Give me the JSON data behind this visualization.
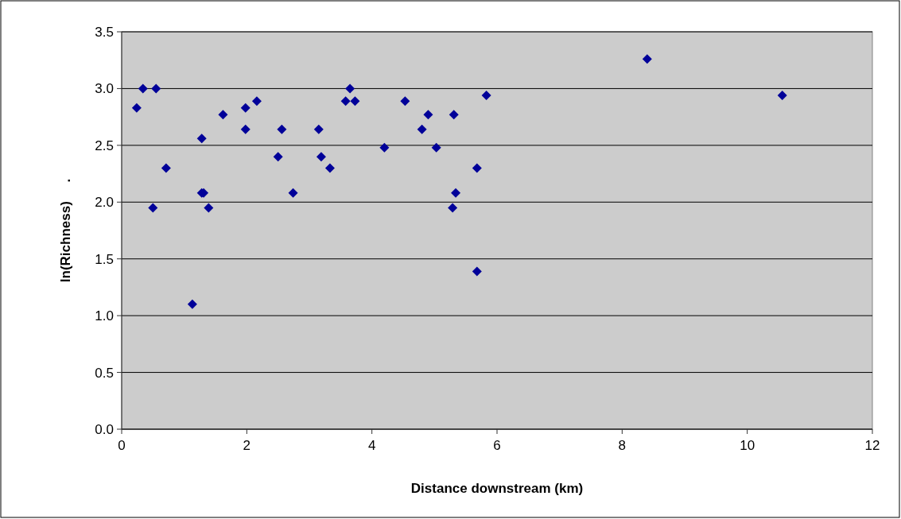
{
  "chart_data": {
    "type": "scatter",
    "xlabel": "Distance downstream (km)",
    "ylabel": "ln(Richness)     .",
    "xlim": [
      0,
      12
    ],
    "xticks": [
      0,
      2,
      4,
      6,
      8,
      10,
      12
    ],
    "ylim": [
      0,
      3.5
    ],
    "yticks": [
      {
        "value": 0,
        "label": "0.0"
      },
      0.5,
      {
        "value": 1,
        "label": "1.0"
      },
      1.5,
      {
        "value": 2,
        "label": "2.0"
      },
      2.5,
      {
        "value": 3,
        "label": "3.0"
      },
      3.5
    ],
    "grid": "y",
    "marker": "diamond",
    "series": [
      {
        "color": "#000099",
        "x": [
          0.24,
          0.34,
          0.55,
          0.5,
          0.71,
          1.13,
          1.28,
          1.31,
          1.28,
          1.39,
          1.62,
          1.98,
          1.98,
          2.16,
          2.5,
          2.56,
          2.74,
          3.15,
          3.19,
          3.33,
          3.58,
          3.65,
          3.73,
          4.2,
          4.53,
          4.8,
          4.9,
          5.03,
          5.31,
          5.29,
          5.34,
          5.68,
          5.68,
          5.83,
          8.4,
          10.56
        ],
        "values": [
          2.83,
          3.0,
          3.0,
          1.95,
          2.3,
          1.1,
          2.08,
          2.08,
          2.56,
          1.95,
          2.77,
          2.83,
          2.64,
          2.89,
          2.4,
          2.64,
          2.08,
          2.64,
          2.4,
          2.3,
          2.89,
          3.0,
          2.89,
          2.48,
          2.89,
          2.64,
          2.77,
          2.48,
          2.77,
          1.95,
          2.08,
          2.3,
          1.39,
          2.94,
          3.26,
          2.94
        ]
      }
    ]
  }
}
